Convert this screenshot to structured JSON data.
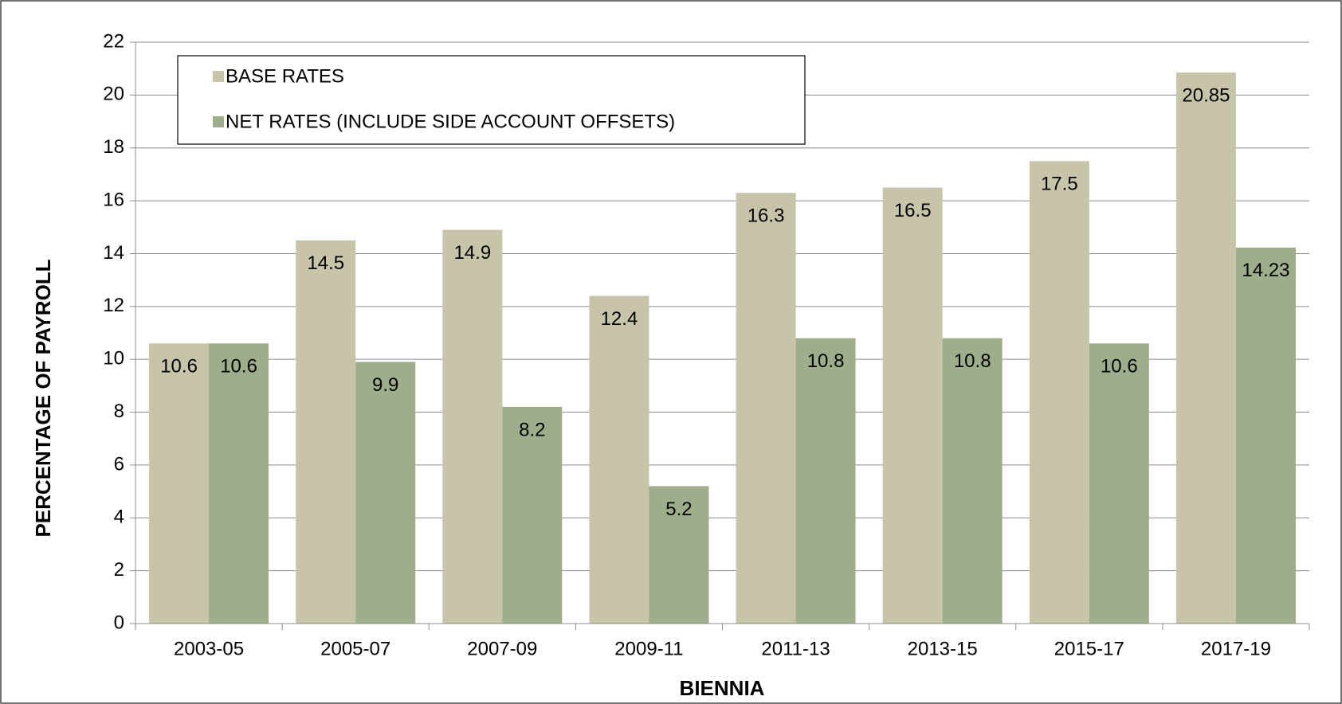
{
  "chart_data": {
    "type": "bar",
    "x_label": "BIENNIA",
    "y_label": "PERCENTAGE OF PAYROLL",
    "categories": [
      "2003-05",
      "2005-07",
      "2007-09",
      "2009-11",
      "2011-13",
      "2013-15",
      "2015-17",
      "2017-19"
    ],
    "series": [
      {
        "name": "BASE RATES",
        "color": "#c8c4aa",
        "values": [
          10.6,
          14.5,
          14.9,
          12.4,
          16.3,
          16.5,
          17.5,
          20.85
        ]
      },
      {
        "name": "NET RATES (INCLUDE SIDE ACCOUNT OFFSETS)",
        "color": "#9eae8a",
        "values": [
          10.6,
          9.9,
          8.2,
          5.2,
          10.8,
          10.8,
          10.6,
          14.23
        ]
      }
    ],
    "ylim": [
      0,
      22
    ],
    "yticks": [
      0,
      2,
      4,
      6,
      8,
      10,
      12,
      14,
      16,
      18,
      20,
      22
    ],
    "grid": true,
    "legend": "upper left"
  }
}
